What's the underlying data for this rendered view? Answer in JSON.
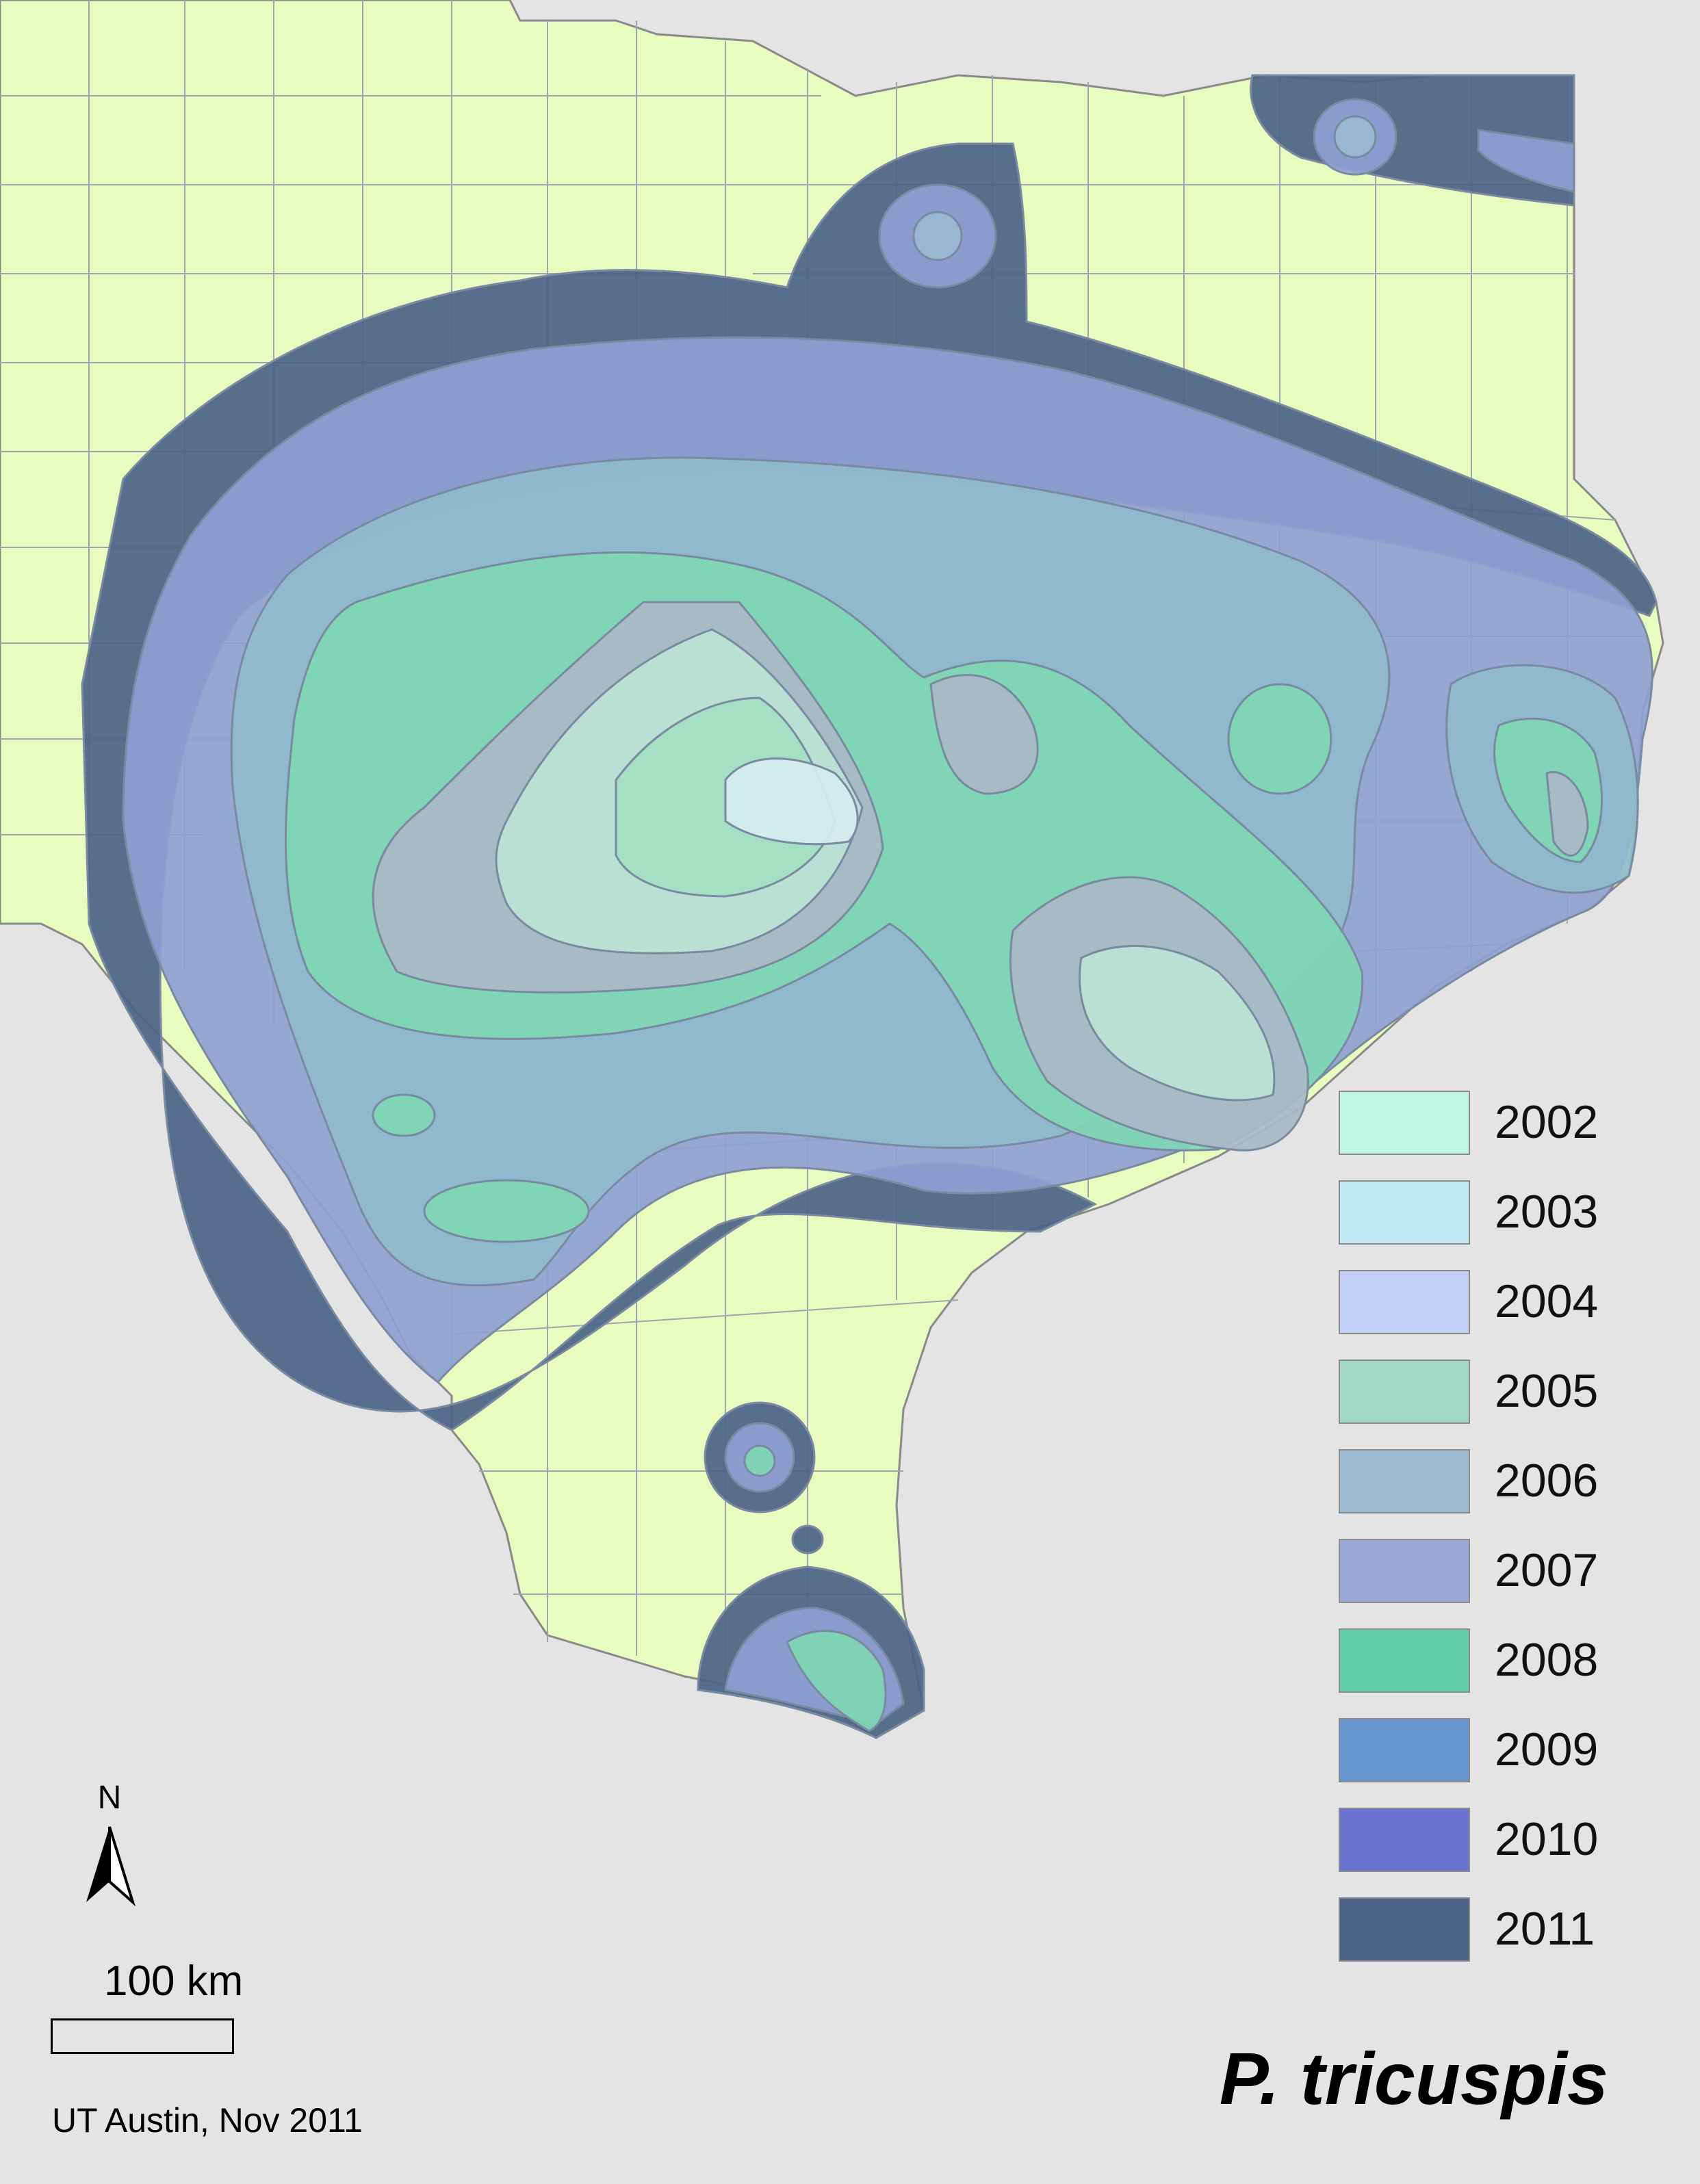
{
  "title": "P. tricuspis",
  "credit": "UT Austin, Nov 2011",
  "scale": {
    "label": "100 km"
  },
  "north": {
    "label": "N"
  },
  "legend": [
    {
      "label": "2002",
      "color": "#bff5e1"
    },
    {
      "label": "2003",
      "color": "#c3e8f6"
    },
    {
      "label": "2004",
      "color": "#c2d0f8"
    },
    {
      "label": "2005",
      "color": "#a3d8c4"
    },
    {
      "label": "2006",
      "color": "#9bbad2"
    },
    {
      "label": "2007",
      "color": "#9aa8d8"
    },
    {
      "label": "2008",
      "color": "#62cfa9"
    },
    {
      "label": "2009",
      "color": "#6897cf"
    },
    {
      "label": "2010",
      "color": "#6b73d0"
    },
    {
      "label": "2011",
      "color": "#4a6385"
    }
  ],
  "colors": {
    "land": "#e8fcc0",
    "background": "#e4e4e4",
    "boundary": "#8a8a8a"
  }
}
